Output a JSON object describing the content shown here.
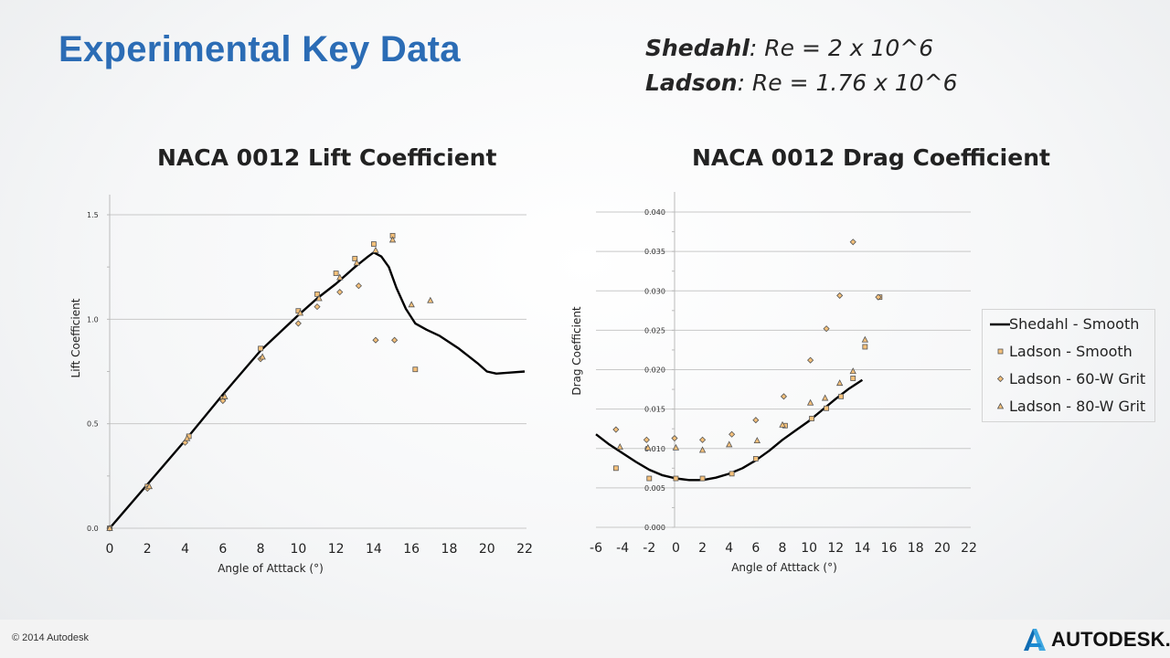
{
  "slide": {
    "title": "Experimental Key Data",
    "re_lines": [
      {
        "name": "Shedahl",
        "value": ": Re = 2 x 10^6"
      },
      {
        "name": "Ladson",
        "value": ": Re = 1.76 x 10^6"
      }
    ],
    "copyright": "© 2014 Autodesk",
    "logo_text": "AUTODESK."
  },
  "legend": [
    {
      "label": "Shedahl - Smooth",
      "symbol": "line"
    },
    {
      "label": "Ladson - Smooth",
      "symbol": "square"
    },
    {
      "label": "Ladson - 60-W Grit",
      "symbol": "diamond"
    },
    {
      "label": "Ladson - 80-W Grit",
      "symbol": "triangle"
    }
  ],
  "colors": {
    "title": "#2b6cb5",
    "marker_fill": "#f4c07a",
    "marker_stroke": "#555555",
    "line": "#000000",
    "grid": "#c8c8c8"
  },
  "chart_data": [
    {
      "type": "scatter",
      "title": "NACA 0012 Lift Coefficient",
      "xlabel": "Angle of Atttack (°)",
      "ylabel": "Lift Coefficient",
      "xlim": [
        0,
        22
      ],
      "ylim": [
        0,
        1.5
      ],
      "xticks": [
        0,
        2,
        4,
        6,
        8,
        10,
        12,
        14,
        16,
        18,
        20,
        22
      ],
      "yticks": [
        "0.0",
        "0.5",
        "1.0",
        "1.5"
      ],
      "grid": true,
      "series": [
        {
          "name": "Shedahl - Smooth",
          "style": "line",
          "points": [
            [
              0,
              0
            ],
            [
              2,
              0.21
            ],
            [
              4,
              0.42
            ],
            [
              6,
              0.64
            ],
            [
              8,
              0.85
            ],
            [
              10,
              1.02
            ],
            [
              11,
              1.1
            ],
            [
              12,
              1.17
            ],
            [
              13,
              1.25
            ],
            [
              13.7,
              1.3
            ],
            [
              14,
              1.32
            ],
            [
              14.4,
              1.3
            ],
            [
              14.8,
              1.25
            ],
            [
              15.2,
              1.15
            ],
            [
              15.7,
              1.05
            ],
            [
              16.2,
              0.98
            ],
            [
              16.8,
              0.95
            ],
            [
              17.5,
              0.92
            ],
            [
              18.5,
              0.86
            ],
            [
              19.5,
              0.79
            ],
            [
              20,
              0.75
            ],
            [
              20.5,
              0.74
            ],
            [
              21.3,
              0.745
            ],
            [
              22,
              0.75
            ]
          ]
        },
        {
          "name": "Ladson - Smooth",
          "style": "square",
          "points": [
            [
              0,
              0
            ],
            [
              2,
              0.2
            ],
            [
              4.2,
              0.44
            ],
            [
              6,
              0.62
            ],
            [
              8,
              0.86
            ],
            [
              10,
              1.04
            ],
            [
              11,
              1.12
            ],
            [
              12,
              1.22
            ],
            [
              13,
              1.29
            ],
            [
              14,
              1.36
            ],
            [
              15,
              1.4
            ],
            [
              16.2,
              0.76
            ]
          ]
        },
        {
          "name": "Ladson - 60-W Grit",
          "style": "diamond",
          "points": [
            [
              0,
              0
            ],
            [
              2,
              0.19
            ],
            [
              4,
              0.41
            ],
            [
              6,
              0.61
            ],
            [
              8,
              0.81
            ],
            [
              10,
              0.98
            ],
            [
              11,
              1.06
            ],
            [
              12.2,
              1.13
            ],
            [
              13.2,
              1.16
            ],
            [
              14.1,
              0.9
            ],
            [
              15.1,
              0.9
            ]
          ]
        },
        {
          "name": "Ladson - 80-W Grit",
          "style": "triangle",
          "points": [
            [
              0,
              0
            ],
            [
              2.1,
              0.2
            ],
            [
              4.1,
              0.43
            ],
            [
              6.1,
              0.63
            ],
            [
              8.1,
              0.82
            ],
            [
              10.1,
              1.03
            ],
            [
              11.1,
              1.1
            ],
            [
              12.2,
              1.2
            ],
            [
              13.1,
              1.27
            ],
            [
              14.1,
              1.33
            ],
            [
              15,
              1.38
            ],
            [
              16,
              1.07
            ],
            [
              17,
              1.09
            ]
          ]
        }
      ]
    },
    {
      "type": "scatter",
      "title": "NACA 0012 Drag Coefficient",
      "xlabel": "Angle of Atttack (°)",
      "ylabel": "Drag Coefficient",
      "xlim": [
        -6,
        22
      ],
      "ylim": [
        0,
        0.04
      ],
      "xticks": [
        -6,
        -4,
        -2,
        0,
        2,
        4,
        6,
        8,
        10,
        12,
        14,
        16,
        18,
        20,
        22
      ],
      "yticks": [
        "0.000",
        "0.005",
        "0.010",
        "0.015",
        "0.020",
        "0.025",
        "0.030",
        "0.035",
        "0.040"
      ],
      "grid": true,
      "series": [
        {
          "name": "Shedahl - Smooth",
          "style": "line",
          "points": [
            [
              -6,
              0.0118
            ],
            [
              -5,
              0.0105
            ],
            [
              -4,
              0.0094
            ],
            [
              -3,
              0.0083
            ],
            [
              -2,
              0.0073
            ],
            [
              -1,
              0.0066
            ],
            [
              0,
              0.0062
            ],
            [
              1,
              0.006
            ],
            [
              2,
              0.006
            ],
            [
              3,
              0.0063
            ],
            [
              4,
              0.0068
            ],
            [
              5,
              0.0075
            ],
            [
              6,
              0.0085
            ],
            [
              7,
              0.0097
            ],
            [
              8,
              0.0111
            ],
            [
              9,
              0.0123
            ],
            [
              10,
              0.0135
            ],
            [
              11,
              0.0149
            ],
            [
              12,
              0.0163
            ],
            [
              13,
              0.0176
            ],
            [
              14,
              0.0187
            ]
          ]
        },
        {
          "name": "Ladson - Smooth",
          "style": "square",
          "points": [
            [
              -4.5,
              0.0075
            ],
            [
              -2,
              0.0062
            ],
            [
              0,
              0.0062
            ],
            [
              2,
              0.0062
            ],
            [
              4.2,
              0.0068
            ],
            [
              6,
              0.0087
            ],
            [
              8.2,
              0.0129
            ],
            [
              10.2,
              0.0138
            ],
            [
              11.3,
              0.0151
            ],
            [
              12.4,
              0.0166
            ],
            [
              13.3,
              0.0189
            ],
            [
              14.2,
              0.0229
            ],
            [
              15.3,
              0.0292
            ]
          ]
        },
        {
          "name": "Ladson - 60-W Grit",
          "style": "diamond",
          "points": [
            [
              -4.5,
              0.0124
            ],
            [
              -2.2,
              0.0111
            ],
            [
              -0.1,
              0.0113
            ],
            [
              2,
              0.0111
            ],
            [
              4.2,
              0.0118
            ],
            [
              6,
              0.0136
            ],
            [
              8.1,
              0.0166
            ],
            [
              10.1,
              0.0212
            ],
            [
              11.3,
              0.0252
            ],
            [
              12.3,
              0.0294
            ],
            [
              13.3,
              0.0362
            ],
            [
              15.2,
              0.0292
            ]
          ]
        },
        {
          "name": "Ladson - 80-W Grit",
          "style": "triangle",
          "points": [
            [
              -4.2,
              0.0102
            ],
            [
              -2.1,
              0.0101
            ],
            [
              0,
              0.0101
            ],
            [
              2,
              0.0098
            ],
            [
              4,
              0.0105
            ],
            [
              6.1,
              0.011
            ],
            [
              8,
              0.013
            ],
            [
              10.1,
              0.0158
            ],
            [
              11.2,
              0.0164
            ],
            [
              12.3,
              0.0183
            ],
            [
              13.3,
              0.0198
            ],
            [
              14.2,
              0.0238
            ]
          ]
        }
      ]
    }
  ]
}
